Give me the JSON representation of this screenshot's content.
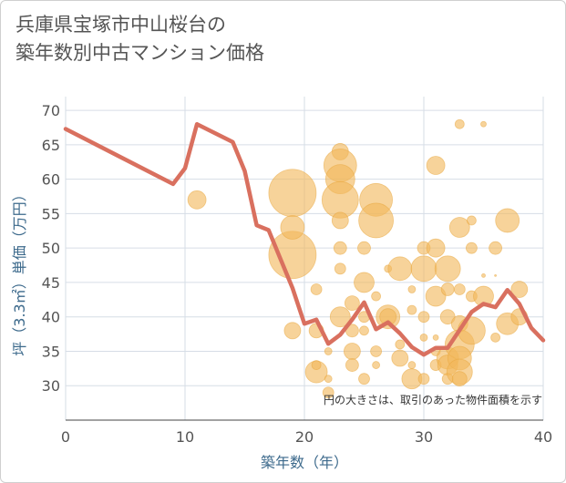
{
  "title_lines": [
    "兵庫県宝塚市中山桜台の",
    "築年数別中古マンション価格"
  ],
  "colors": {
    "line": "#d9705f",
    "bubble": "#f2b85c",
    "grid": "#d6dde6",
    "axis_text": "#3d6a8c"
  },
  "chart_data": {
    "type": "scatter",
    "xlabel": "築年数（年）",
    "ylabel": "坪（3.3㎡）単価（万円）",
    "xlim": [
      0,
      40
    ],
    "ylim": [
      25,
      72
    ],
    "x_ticks": [
      0,
      10,
      20,
      30,
      40
    ],
    "y_ticks": [
      30,
      35,
      40,
      45,
      50,
      55,
      60,
      65,
      70
    ],
    "grid": true,
    "annotation": "円の大きさは、取引のあった物件面積を示す",
    "series": [
      {
        "kind": "line",
        "points": [
          [
            0,
            67.3
          ],
          [
            9,
            59.3
          ],
          [
            10,
            61.6
          ],
          [
            11,
            68.0
          ],
          [
            14,
            65.4
          ],
          [
            15,
            61.2
          ],
          [
            16,
            53.3
          ],
          [
            17,
            52.6
          ],
          [
            18,
            48.4
          ],
          [
            19,
            44.2
          ],
          [
            20,
            39.0
          ],
          [
            21,
            39.6
          ],
          [
            22,
            36.1
          ],
          [
            23,
            37.4
          ],
          [
            24,
            39.6
          ],
          [
            25,
            42.1
          ],
          [
            26,
            38.2
          ],
          [
            27,
            39.2
          ],
          [
            28,
            37.6
          ],
          [
            29,
            35.6
          ],
          [
            30,
            34.5
          ],
          [
            31,
            35.5
          ],
          [
            32,
            35.5
          ],
          [
            33,
            38.1
          ],
          [
            34,
            40.7
          ],
          [
            35,
            41.9
          ],
          [
            36,
            41.4
          ],
          [
            37,
            43.9
          ],
          [
            38,
            41.9
          ],
          [
            39,
            38.4
          ],
          [
            40,
            36.6
          ]
        ]
      },
      {
        "kind": "bubble",
        "points": [
          [
            11,
            57,
            10
          ],
          [
            19,
            58,
            26
          ],
          [
            19,
            49,
            26
          ],
          [
            19,
            53,
            13
          ],
          [
            19,
            38,
            9
          ],
          [
            21,
            38,
            8
          ],
          [
            21,
            44,
            6
          ],
          [
            21,
            32,
            12
          ],
          [
            21,
            33,
            5
          ],
          [
            22,
            29,
            6
          ],
          [
            22,
            35,
            4
          ],
          [
            22,
            31,
            4
          ],
          [
            23,
            64,
            9
          ],
          [
            23,
            62,
            18
          ],
          [
            23,
            60,
            16
          ],
          [
            23,
            57,
            20
          ],
          [
            23,
            54,
            9
          ],
          [
            23,
            50,
            7
          ],
          [
            23,
            47,
            6
          ],
          [
            23,
            40,
            11
          ],
          [
            24,
            42,
            8
          ],
          [
            24,
            38,
            7
          ],
          [
            24,
            35,
            9
          ],
          [
            24,
            33,
            7
          ],
          [
            25,
            50,
            7
          ],
          [
            25,
            45,
            11
          ],
          [
            25,
            40,
            6
          ],
          [
            25,
            38,
            5
          ],
          [
            25,
            31,
            6
          ],
          [
            26,
            57,
            18
          ],
          [
            26,
            54,
            19
          ],
          [
            26,
            43,
            5
          ],
          [
            26,
            35,
            6
          ],
          [
            26,
            33,
            4
          ],
          [
            27,
            47,
            4
          ],
          [
            27,
            40,
            13
          ],
          [
            27,
            40,
            9
          ],
          [
            28,
            47,
            13
          ],
          [
            28,
            34,
            9
          ],
          [
            28,
            36,
            5
          ],
          [
            29,
            44,
            4
          ],
          [
            29,
            41,
            5
          ],
          [
            29,
            31,
            11
          ],
          [
            29,
            33,
            4
          ],
          [
            30,
            50,
            7
          ],
          [
            30,
            47,
            14
          ],
          [
            30,
            40,
            6
          ],
          [
            30,
            37,
            4
          ],
          [
            30,
            31,
            6
          ],
          [
            31,
            62,
            10
          ],
          [
            31,
            50,
            10
          ],
          [
            31,
            43,
            11
          ],
          [
            31,
            33,
            6
          ],
          [
            31,
            35,
            5
          ],
          [
            32,
            47,
            14
          ],
          [
            32,
            44,
            7
          ],
          [
            32,
            40,
            8
          ],
          [
            32,
            34,
            12
          ],
          [
            32,
            33,
            11
          ],
          [
            32,
            31,
            6
          ],
          [
            33,
            68,
            5
          ],
          [
            33,
            53,
            11
          ],
          [
            33,
            44,
            6
          ],
          [
            33,
            39,
            9
          ],
          [
            33,
            36,
            16
          ],
          [
            33,
            34,
            13
          ],
          [
            33,
            32,
            14
          ],
          [
            33,
            31,
            8
          ],
          [
            34,
            54,
            5
          ],
          [
            34,
            50,
            6
          ],
          [
            34,
            38,
            15
          ],
          [
            34,
            43,
            6
          ],
          [
            35,
            68,
            3
          ],
          [
            35,
            43,
            11
          ],
          [
            35,
            46,
            2
          ],
          [
            36,
            50,
            7
          ],
          [
            36,
            46,
            1
          ],
          [
            36,
            37,
            5
          ],
          [
            37,
            54,
            13
          ],
          [
            37,
            39,
            12
          ],
          [
            38,
            40,
            9
          ],
          [
            38,
            44,
            9
          ],
          [
            31,
            37,
            3
          ]
        ]
      }
    ]
  }
}
